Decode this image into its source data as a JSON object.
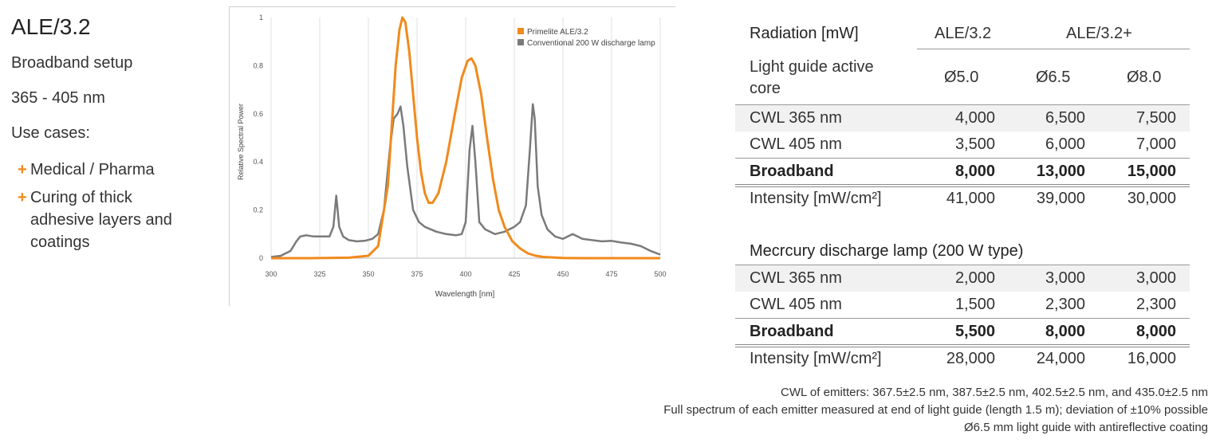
{
  "left": {
    "title": "ALE/3.2",
    "setup": "Broadband setup",
    "range": "365 - 405 nm",
    "use_cases_label": "Use cases:",
    "use_cases": [
      "Medical / Pharma",
      "Curing of thick adhesive layers and coatings"
    ],
    "bullet": "+",
    "accent": "#f08a1c"
  },
  "chart_data": {
    "type": "line",
    "xlabel": "Wavelength [nm]",
    "ylabel": "Relative Spectral Power",
    "xlim": [
      300,
      500
    ],
    "ylim": [
      0,
      1
    ],
    "xticks": [
      300,
      325,
      350,
      375,
      400,
      425,
      450,
      475,
      500
    ],
    "yticks": [
      0,
      0.2,
      0.4,
      0.6,
      0.8,
      1
    ],
    "ytick_labels": [
      "0",
      "0.2",
      "0.4",
      "0.6",
      "0.8",
      "1"
    ],
    "grid": "vertical",
    "legend_position": "top-right",
    "series": [
      {
        "name": "Primelite ALE/3.2",
        "color": "#f08a1c",
        "x": [
          300,
          320,
          340,
          350,
          355,
          360,
          362,
          364,
          366,
          367.5,
          369,
          371,
          373,
          375,
          377,
          379,
          381,
          383,
          386,
          390,
          394,
          398,
          401,
          403,
          405,
          408,
          411,
          414,
          417,
          420,
          424,
          428,
          432,
          436,
          440,
          445,
          450,
          460,
          475,
          500
        ],
        "y": [
          0,
          0,
          0.002,
          0.01,
          0.05,
          0.3,
          0.55,
          0.8,
          0.95,
          1.0,
          0.98,
          0.86,
          0.68,
          0.5,
          0.36,
          0.27,
          0.23,
          0.23,
          0.27,
          0.4,
          0.58,
          0.75,
          0.82,
          0.83,
          0.8,
          0.68,
          0.5,
          0.33,
          0.2,
          0.13,
          0.07,
          0.04,
          0.02,
          0.01,
          0.005,
          0.003,
          0.001,
          0,
          0,
          0
        ]
      },
      {
        "name": "Conventional 200 W discharge lamp",
        "color": "#7a7a7a",
        "x": [
          300,
          305,
          310,
          313,
          315,
          318,
          322,
          326,
          330,
          332,
          333.5,
          335,
          337,
          340,
          344,
          348,
          352,
          355,
          358,
          361,
          363,
          365,
          366.5,
          368,
          370,
          373,
          376,
          379,
          382,
          385,
          390,
          395,
          398,
          400,
          402,
          403.5,
          405,
          407,
          410,
          415,
          420,
          425,
          428,
          431,
          433,
          434.5,
          435.5,
          437,
          439,
          442,
          446,
          450,
          455,
          460,
          465,
          470,
          475,
          480,
          485,
          490,
          495,
          500
        ],
        "y": [
          0.005,
          0.01,
          0.03,
          0.07,
          0.09,
          0.095,
          0.09,
          0.09,
          0.09,
          0.13,
          0.26,
          0.13,
          0.09,
          0.075,
          0.07,
          0.072,
          0.08,
          0.1,
          0.2,
          0.45,
          0.58,
          0.6,
          0.63,
          0.55,
          0.38,
          0.2,
          0.15,
          0.13,
          0.12,
          0.11,
          0.1,
          0.095,
          0.1,
          0.15,
          0.45,
          0.55,
          0.4,
          0.15,
          0.12,
          0.1,
          0.11,
          0.13,
          0.15,
          0.22,
          0.45,
          0.64,
          0.58,
          0.3,
          0.18,
          0.12,
          0.09,
          0.08,
          0.1,
          0.08,
          0.075,
          0.07,
          0.072,
          0.065,
          0.06,
          0.05,
          0.03,
          0.015
        ]
      }
    ]
  },
  "table": {
    "header_label": "Radiation [mW]",
    "col_group_1": "ALE/3.2",
    "col_group_2": "ALE/3.2+",
    "subheader_label": "Light guide active core",
    "subheader_values": [
      "Ø5.0",
      "Ø6.5",
      "Ø8.0"
    ],
    "ale_rows": [
      {
        "label": "CWL 365 nm",
        "values": [
          "4,000",
          "6,500",
          "7,500"
        ]
      },
      {
        "label": "CWL 405 nm",
        "values": [
          "3,500",
          "6,000",
          "7,000"
        ]
      },
      {
        "label": "Broadband",
        "values": [
          "8,000",
          "13,000",
          "15,000"
        ]
      },
      {
        "label": "Intensity [mW/cm²]",
        "values": [
          "41,000",
          "39,000",
          "30,000"
        ]
      }
    ],
    "mercury_title": "Mecrcury discharge lamp (200 W type)",
    "mercury_rows": [
      {
        "label": "CWL 365 nm",
        "values": [
          "2,000",
          "3,000",
          "3,000"
        ]
      },
      {
        "label": "CWL 405 nm",
        "values": [
          "1,500",
          "2,300",
          "2,300"
        ]
      },
      {
        "label": "Broadband",
        "values": [
          "5,500",
          "8,000",
          "8,000"
        ]
      },
      {
        "label": "Intensity [mW/cm²]",
        "values": [
          "28,000",
          "24,000",
          "16,000"
        ]
      }
    ]
  },
  "notes": [
    "CWL of emitters: 367.5±2.5 nm, 387.5±2.5 nm, 402.5±2.5 nm, and 435.0±2.5 nm",
    "Full spectrum of each emitter measured at end of light guide (length 1.5 m); deviation of ±10% possible",
    "Ø6.5 mm light guide with antireflective coating"
  ]
}
